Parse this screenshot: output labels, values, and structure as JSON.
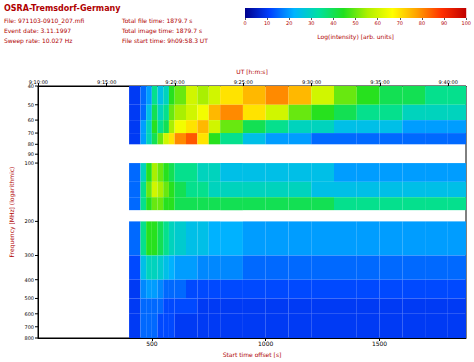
{
  "chart_data": {
    "type": "heatmap",
    "title": "OSRA-Tremsdorf-Germany",
    "annotations": [
      "File: 971103-0910_207.mfi",
      "Event date: 3.11.1997",
      "Sweep rate: 10.027 Hz",
      "Total file time: 1879.7 s",
      "Total image time: 1879.7 s",
      "File start time: 9h09:58.3 UT"
    ],
    "xlabel": "Start time offset [s]",
    "xlim": [
      0,
      1879.7
    ],
    "xticks": [
      500,
      1000,
      1500
    ],
    "x2label": "UT [h:m:s]",
    "x2ticks": [
      {
        "value": 1.7,
        "label": "9:10:00"
      },
      {
        "value": 301.7,
        "label": "9:15:00"
      },
      {
        "value": 601.7,
        "label": "9:20:00"
      },
      {
        "value": 901.7,
        "label": "9:25:00"
      },
      {
        "value": 1201.7,
        "label": "9:30:00"
      },
      {
        "value": 1501.7,
        "label": "9:35:00"
      },
      {
        "value": 1801.7,
        "label": "9:40:00"
      }
    ],
    "ylabel": "Frequency [MHz] (logarithmic)",
    "ylim": [
      40,
      800
    ],
    "yticks": [
      40,
      50,
      60,
      70,
      80,
      90,
      100,
      200,
      300,
      400,
      500,
      600,
      700,
      800
    ],
    "log": "y",
    "time_edges": [
      0,
      200,
      400,
      450,
      475,
      500,
      525,
      550,
      575,
      600,
      650,
      700,
      750,
      800,
      900,
      1000,
      1100,
      1200,
      1300,
      1400,
      1500,
      1600,
      1700,
      1800,
      1879.7
    ],
    "frequency_edges": [
      40,
      50,
      60,
      70,
      80,
      100,
      125,
      150,
      175,
      200,
      300,
      400,
      500,
      600,
      800
    ],
    "intensity": [
      [
        null,
        null,
        10,
        15,
        20,
        35,
        25,
        30,
        45,
        50,
        60,
        55,
        60,
        70,
        75,
        80,
        75,
        60,
        50,
        45,
        40,
        40,
        35,
        35
      ],
      [
        null,
        null,
        10,
        15,
        25,
        40,
        30,
        35,
        50,
        55,
        60,
        65,
        75,
        80,
        70,
        60,
        50,
        45,
        40,
        35,
        35,
        30,
        30,
        30
      ],
      [
        null,
        null,
        10,
        20,
        30,
        45,
        35,
        40,
        55,
        65,
        70,
        75,
        60,
        50,
        40,
        35,
        30,
        30,
        25,
        25,
        25,
        20,
        20,
        20
      ],
      [
        null,
        null,
        10,
        20,
        30,
        40,
        50,
        60,
        70,
        80,
        85,
        70,
        45,
        35,
        25,
        20,
        20,
        15,
        15,
        15,
        15,
        15,
        15,
        15
      ],
      [
        null,
        null,
        null,
        null,
        null,
        null,
        null,
        null,
        null,
        null,
        null,
        null,
        null,
        null,
        null,
        null,
        null,
        null,
        null,
        null,
        null,
        null,
        null,
        null
      ],
      [
        null,
        null,
        15,
        30,
        45,
        55,
        50,
        45,
        40,
        35,
        35,
        30,
        30,
        25,
        25,
        25,
        25,
        25,
        20,
        20,
        20,
        20,
        20,
        20
      ],
      [
        null,
        null,
        15,
        35,
        50,
        60,
        55,
        50,
        45,
        40,
        35,
        35,
        30,
        30,
        30,
        30,
        30,
        25,
        25,
        25,
        25,
        25,
        25,
        25
      ],
      [
        null,
        null,
        15,
        35,
        45,
        50,
        50,
        45,
        45,
        40,
        40,
        40,
        40,
        40,
        40,
        40,
        40,
        40,
        35,
        35,
        35,
        35,
        35,
        35
      ],
      [
        null,
        null,
        null,
        null,
        null,
        null,
        null,
        null,
        null,
        null,
        null,
        null,
        null,
        null,
        null,
        null,
        null,
        null,
        null,
        null,
        null,
        null,
        null,
        null
      ],
      [
        null,
        null,
        15,
        35,
        45,
        45,
        40,
        35,
        30,
        28,
        25,
        25,
        22,
        22,
        20,
        20,
        20,
        20,
        20,
        20,
        20,
        20,
        20,
        20
      ],
      [
        null,
        null,
        12,
        25,
        30,
        30,
        28,
        25,
        22,
        20,
        20,
        18,
        18,
        18,
        15,
        15,
        15,
        15,
        15,
        15,
        15,
        15,
        15,
        15
      ],
      [
        null,
        null,
        10,
        18,
        20,
        20,
        18,
        15,
        15,
        15,
        12,
        12,
        12,
        12,
        12,
        12,
        12,
        12,
        12,
        12,
        12,
        12,
        12,
        12
      ],
      [
        null,
        null,
        10,
        15,
        15,
        15,
        15,
        12,
        12,
        12,
        12,
        10,
        10,
        10,
        10,
        10,
        10,
        10,
        10,
        10,
        10,
        10,
        10,
        10
      ],
      [
        null,
        null,
        10,
        15,
        15,
        15,
        12,
        12,
        12,
        10,
        10,
        10,
        10,
        10,
        10,
        10,
        10,
        10,
        10,
        10,
        10,
        10,
        10,
        10
      ]
    ],
    "colorbar": {
      "label": "Log(intensity) [arb. units]",
      "range": [
        0,
        100
      ],
      "ticks": [
        0,
        10,
        20,
        30,
        40,
        50,
        60,
        70,
        80,
        90,
        100
      ]
    }
  }
}
